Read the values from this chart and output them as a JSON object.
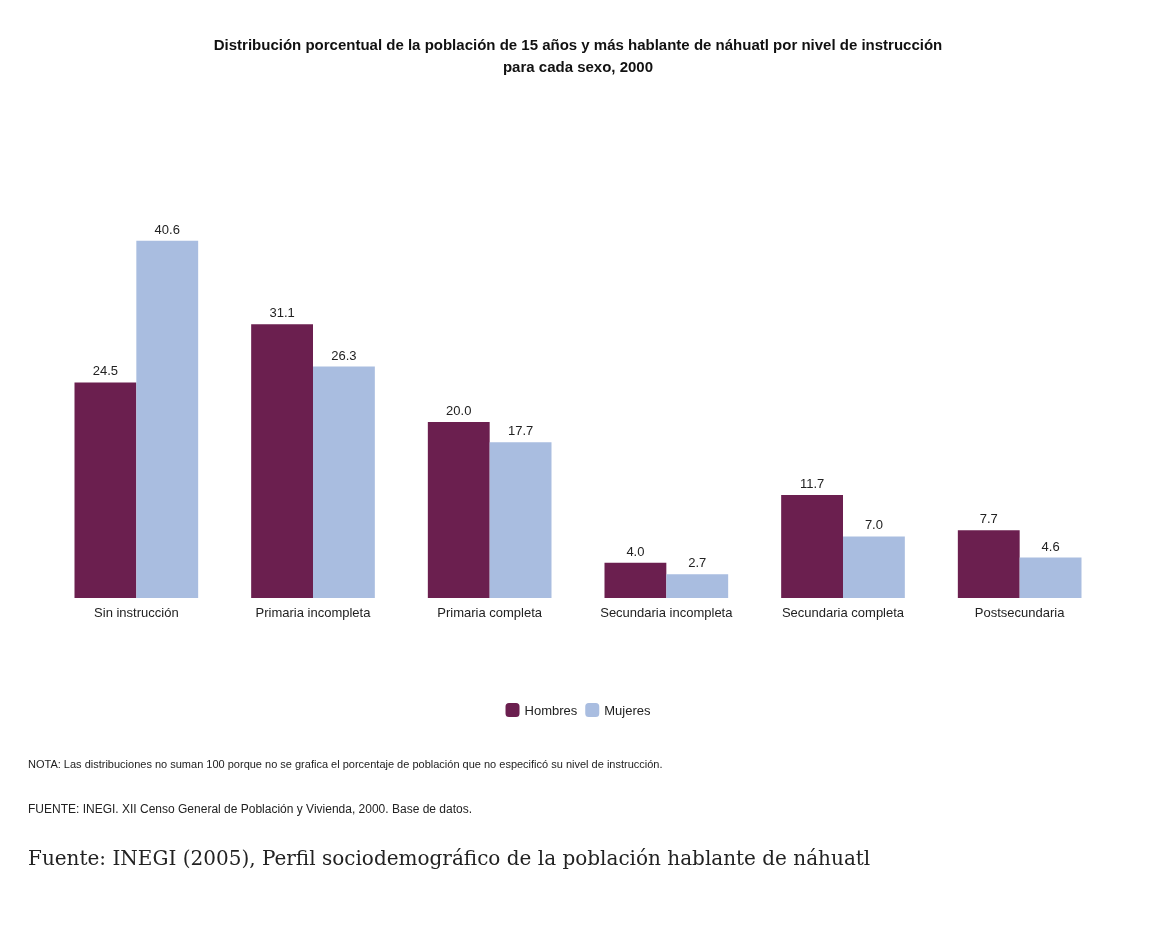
{
  "chart_data": {
    "type": "bar",
    "title": "Distribución porcentual de la población de 15 años y más hablante de náhuatl por nivel de instrucción\npara cada sexo, 2000",
    "categories": [
      "Sin instrucción",
      "Primaria incompleta",
      "Primaria completa",
      "Secundaria incompleta",
      "Secundaria completa",
      "Postsecundaria"
    ],
    "series": [
      {
        "name": "Hombres",
        "color": "#6b1f4f",
        "values": [
          24.5,
          31.1,
          20.0,
          4.0,
          11.7,
          7.7
        ],
        "value_labels": [
          "24.5",
          "31.1",
          "20.0",
          "4.0",
          "11.7",
          "7.7"
        ]
      },
      {
        "name": "Mujeres",
        "color": "#a9bde0",
        "values": [
          40.6,
          26.3,
          17.7,
          2.7,
          7.0,
          4.6
        ],
        "value_labels": [
          "40.6",
          "26.3",
          "17.7",
          "2.7",
          "7.0",
          "4.6"
        ]
      }
    ],
    "legend": "bottom",
    "annotations": [
      "NOTA: Las distribuciones no suman 100 porque no se grafica el porcentaje de población que no especificó su nivel de instrucción.",
      "FUENTE: INEGI. XII Censo General de Población y Vivienda, 2000. Base de datos.",
      "Fuente: INEGI (2005), Perfil sociodemográfico de la población hablante de náhuatl"
    ]
  }
}
